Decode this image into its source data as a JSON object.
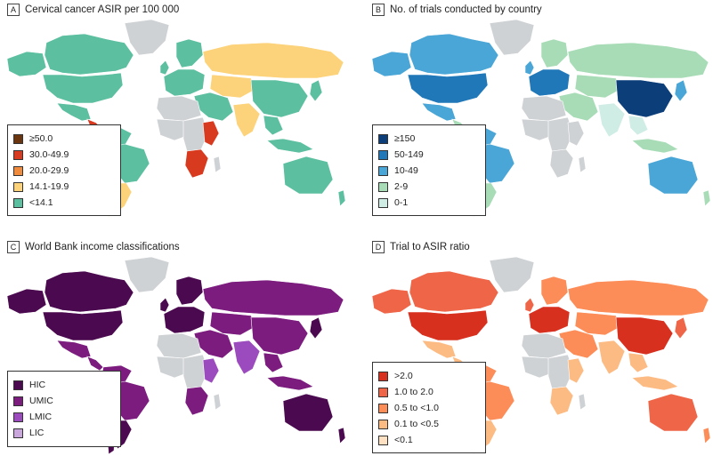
{
  "colors": {
    "no_data": "#cfd2d5",
    "a": [
      "#6b3510",
      "#d73a1f",
      "#f08a3c",
      "#fcd27a",
      "#5cbfa0"
    ],
    "b": [
      "#0c3f7a",
      "#2178b8",
      "#4aa6d6",
      "#a8dcb7",
      "#cfede5"
    ],
    "c": [
      "#4b0a4f",
      "#7b1c7e",
      "#9b4bbd",
      "#c9a6dc"
    ],
    "d": [
      "#d7301f",
      "#ef6548",
      "#fc8d59",
      "#fdbb84",
      "#fee1c3"
    ]
  },
  "panels": [
    {
      "letter": "A",
      "title": "Cervical cancer ASIR per 100 000",
      "legend": [
        "≥50.0",
        "30.0-49.9",
        "20.0-29.9",
        "14.1-19.9",
        "<14.1"
      ]
    },
    {
      "letter": "B",
      "title": "No. of trials conducted by country",
      "legend": [
        "≥150",
        "50-149",
        "10-49",
        "2-9",
        "0-1"
      ]
    },
    {
      "letter": "C",
      "title": "World Bank income classifications",
      "legend": [
        "HIC",
        "UMIC",
        "LMIC",
        "LIC"
      ]
    },
    {
      "letter": "D",
      "title": "Trial to ASIR ratio",
      "legend": [
        ">2.0",
        "1.0 to 2.0",
        "0.5 to <1.0",
        "0.1 to <0.5",
        "<0.1"
      ]
    }
  ],
  "regions": {
    "a": {
      "na": 4,
      "can": 4,
      "alaska": 4,
      "greenland": -1,
      "mexico": 4,
      "central": 1,
      "sa_north": 4,
      "brazil": 4,
      "sa_south": 3,
      "chile": 3,
      "europe_w": 4,
      "uk": 4,
      "scand": 4,
      "russia": 3,
      "c_asia": 3,
      "middle_east": 4,
      "china": 4,
      "india": 3,
      "se_asia": 4,
      "japan": 4,
      "indonesia": 4,
      "aus": 4,
      "nz": 4,
      "n_africa": -1,
      "w_africa": -1,
      "c_africa": -1,
      "e_africa": 1,
      "s_africa": 1,
      "madag": -1
    },
    "b": {
      "na": 1,
      "can": 2,
      "alaska": 2,
      "greenland": -1,
      "mexico": 2,
      "central": 3,
      "sa_north": 2,
      "brazil": 2,
      "sa_south": 3,
      "chile": 3,
      "europe_w": 1,
      "uk": 2,
      "scand": 3,
      "russia": 3,
      "c_asia": 3,
      "middle_east": 3,
      "china": 0,
      "india": 4,
      "se_asia": 4,
      "japan": 2,
      "indonesia": 3,
      "aus": 2,
      "nz": 3,
      "n_africa": -1,
      "w_africa": -1,
      "c_africa": -1,
      "e_africa": -1,
      "s_africa": -1,
      "madag": -1
    },
    "c": {
      "na": 0,
      "can": 0,
      "alaska": 0,
      "greenland": -1,
      "mexico": 1,
      "central": 1,
      "sa_north": 1,
      "brazil": 1,
      "sa_south": 0,
      "chile": 0,
      "europe_w": 0,
      "uk": 0,
      "scand": 0,
      "russia": 1,
      "c_asia": 1,
      "middle_east": 1,
      "china": 1,
      "india": 2,
      "se_asia": 1,
      "japan": 0,
      "indonesia": 1,
      "aus": 0,
      "nz": 0,
      "n_africa": -1,
      "w_africa": -1,
      "c_africa": -1,
      "e_africa": 2,
      "s_africa": 1,
      "madag": -1
    },
    "d": {
      "na": 0,
      "can": 1,
      "alaska": 1,
      "greenland": -1,
      "mexico": 3,
      "central": 3,
      "sa_north": 2,
      "brazil": 2,
      "sa_south": 3,
      "chile": 3,
      "europe_w": 0,
      "uk": 1,
      "scand": 2,
      "russia": 2,
      "c_asia": 2,
      "middle_east": 2,
      "china": 0,
      "india": 3,
      "se_asia": 3,
      "japan": 1,
      "indonesia": 3,
      "aus": 1,
      "nz": 2,
      "n_africa": -1,
      "w_africa": -1,
      "c_africa": -1,
      "e_africa": 3,
      "s_africa": 3,
      "madag": -1
    }
  }
}
